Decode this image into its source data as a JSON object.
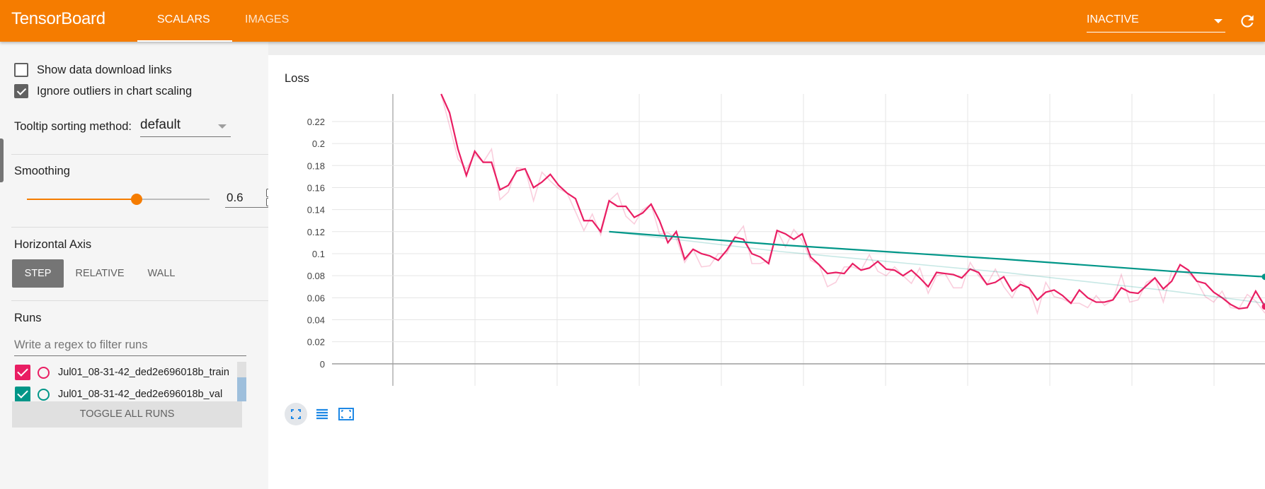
{
  "header": {
    "brand": "TensorBoard",
    "tabs": [
      {
        "label": "SCALARS",
        "active": true
      },
      {
        "label": "IMAGES",
        "active": false
      }
    ],
    "status_select": "INACTIVE",
    "reload_icon": "reload-icon",
    "color": "#f57c00"
  },
  "sidebar": {
    "show_download_links": {
      "label": "Show data download links",
      "checked": false
    },
    "ignore_outliers": {
      "label": "Ignore outliers in chart scaling",
      "checked": true
    },
    "tooltip_sorting": {
      "label": "Tooltip sorting method:",
      "value": "default"
    },
    "smoothing": {
      "title": "Smoothing",
      "value": "0.6",
      "fraction": 0.6
    },
    "horizontal_axis": {
      "title": "Horizontal Axis",
      "options": [
        "STEP",
        "RELATIVE",
        "WALL"
      ],
      "selected": "STEP"
    },
    "runs": {
      "title": "Runs",
      "filter_placeholder": "Write a regex to filter runs",
      "items": [
        {
          "name": "Jul01_08-31-42_ded2e696018b_train",
          "color": "#e91e63",
          "checked": true
        },
        {
          "name": "Jul01_08-31-42_ded2e696018b_val",
          "color": "#009688",
          "checked": true
        }
      ],
      "toggle_label": "TOGGLE ALL RUNS"
    }
  },
  "chart_data": {
    "type": "line",
    "title": "Loss",
    "xlabel": "",
    "ylabel": "",
    "y_ticks": [
      "0.22",
      "0.2",
      "0.18",
      "0.16",
      "0.14",
      "0.12",
      "0.1",
      "0.08",
      "0.06",
      "0.04",
      "0.02",
      "0"
    ],
    "ylim": [
      -0.02,
      0.245
    ],
    "xlim": [
      0,
      1
    ],
    "grid": true,
    "series": [
      {
        "color": "#e91e63",
        "x": [
          0.117,
          0.126,
          0.135,
          0.144,
          0.153,
          0.162,
          0.171,
          0.18,
          0.189,
          0.198,
          0.207,
          0.216,
          0.225,
          0.234,
          0.243,
          0.252,
          0.261,
          0.27,
          0.279,
          0.288,
          0.297,
          0.306,
          0.315,
          0.324,
          0.333,
          0.342,
          0.351,
          0.36,
          0.369,
          0.378,
          0.387,
          0.396,
          0.405,
          0.414,
          0.423,
          0.432,
          0.441,
          0.45,
          0.459,
          0.468,
          0.477,
          0.486,
          0.495,
          0.504,
          0.513,
          0.522,
          0.531,
          0.54,
          0.549,
          0.558,
          0.567,
          0.576,
          0.585,
          0.594,
          0.603,
          0.612,
          0.621,
          0.63,
          0.639,
          0.648,
          0.657,
          0.666,
          0.675,
          0.684,
          0.693,
          0.702,
          0.711,
          0.72,
          0.729,
          0.738,
          0.747,
          0.756,
          0.765,
          0.774,
          0.783,
          0.792,
          0.801,
          0.81,
          0.819,
          0.828,
          0.837,
          0.846,
          0.855,
          0.864,
          0.873,
          0.882,
          0.891,
          0.9,
          0.909,
          0.918,
          0.927,
          0.936,
          0.945,
          0.954,
          0.963,
          0.972,
          0.981,
          0.99,
          1.0
        ],
        "values": [
          0.245,
          0.228,
          0.195,
          0.171,
          0.193,
          0.183,
          0.183,
          0.158,
          0.162,
          0.175,
          0.177,
          0.16,
          0.165,
          0.172,
          0.162,
          0.155,
          0.15,
          0.13,
          0.13,
          0.12,
          0.148,
          0.143,
          0.143,
          0.133,
          0.137,
          0.145,
          0.13,
          0.11,
          0.12,
          0.095,
          0.104,
          0.1,
          0.098,
          0.094,
          0.103,
          0.115,
          0.113,
          0.1,
          0.097,
          0.091,
          0.121,
          0.118,
          0.113,
          0.118,
          0.097,
          0.09,
          0.082,
          0.083,
          0.082,
          0.091,
          0.085,
          0.087,
          0.093,
          0.086,
          0.085,
          0.08,
          0.085,
          0.078,
          0.07,
          0.083,
          0.082,
          0.081,
          0.078,
          0.086,
          0.083,
          0.072,
          0.074,
          0.079,
          0.066,
          0.072,
          0.069,
          0.058,
          0.065,
          0.067,
          0.062,
          0.055,
          0.067,
          0.06,
          0.056,
          0.056,
          0.058,
          0.069,
          0.065,
          0.064,
          0.071,
          0.078,
          0.068,
          0.075,
          0.09,
          0.085,
          0.075,
          0.073,
          0.065,
          0.06,
          0.054,
          0.05,
          0.051,
          0.066,
          0.052
        ]
      },
      {
        "color": "#009688",
        "x": [
          0.297,
          0.48,
          0.72,
          0.9,
          1.0
        ],
        "values": [
          0.12,
          0.108,
          0.095,
          0.084,
          0.079
        ]
      }
    ]
  },
  "toolbar_icons": [
    "fit-domain-icon",
    "toggle-log-icon",
    "expand-chart-icon"
  ]
}
